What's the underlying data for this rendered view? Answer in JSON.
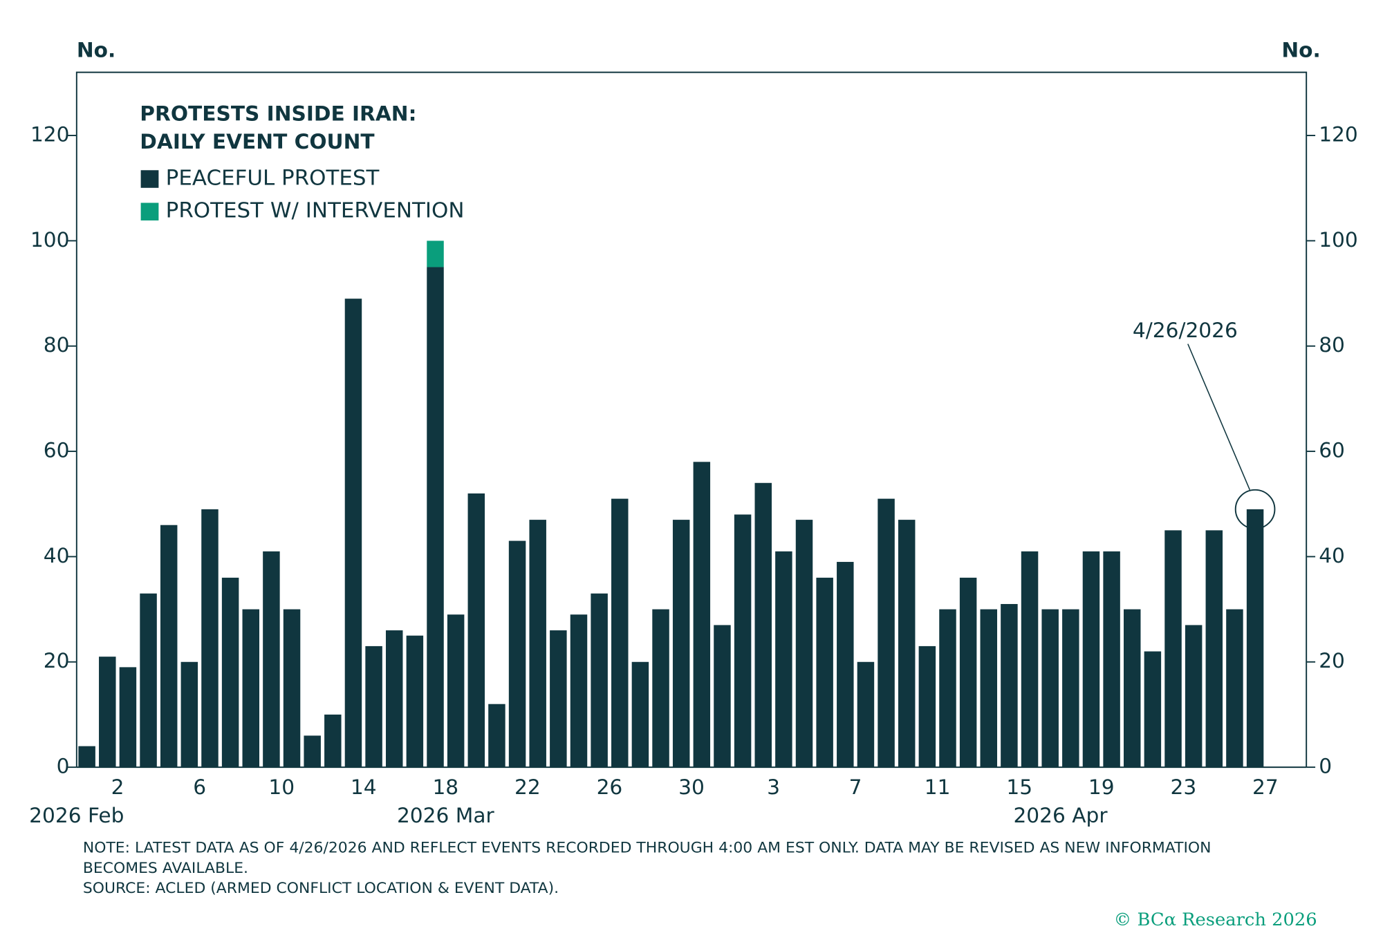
{
  "chart_data": {
    "type": "bar",
    "title": [
      "PROTESTS INSIDE IRAN:",
      "DAILY EVENT COUNT"
    ],
    "ylabel": "No.",
    "y2label": "No.",
    "categories": [
      null,
      null,
      "2",
      null,
      null,
      null,
      "6",
      null,
      null,
      null,
      "10",
      null,
      null,
      null,
      "14",
      null,
      null,
      null,
      "18",
      null,
      null,
      null,
      "22",
      null,
      null,
      null,
      "26",
      null,
      null,
      null,
      "30",
      null,
      null,
      null,
      "3",
      null,
      null,
      null,
      "7",
      null,
      null,
      null,
      "11",
      null,
      null,
      null,
      "15",
      null,
      null,
      null,
      "19",
      null,
      null,
      null,
      "23",
      null,
      null,
      null,
      "27",
      null
    ],
    "groups": [
      {
        "label": "2026 Feb",
        "category": 0
      },
      {
        "label": "2026 Mar",
        "category": 18
      },
      {
        "label": "2026 Apr",
        "category": 48
      }
    ],
    "stacked": true,
    "series": [
      {
        "name": "PEACEFUL PROTEST",
        "color": "#10363f",
        "values": [
          4,
          21,
          19,
          33,
          46,
          20,
          49,
          36,
          30,
          41,
          30,
          6,
          10,
          89,
          23,
          26,
          25,
          95,
          29,
          52,
          12,
          43,
          47,
          26,
          29,
          33,
          51,
          20,
          30,
          47,
          58,
          27,
          48,
          54,
          41,
          47,
          36,
          39,
          20,
          51,
          47,
          23,
          30,
          36,
          30,
          31,
          41,
          30,
          30,
          41,
          41,
          30,
          22,
          45,
          27,
          45,
          30,
          49,
          null,
          null
        ]
      },
      {
        "name": "PROTEST W/ INTERVENTION",
        "color": "#0a9e7c",
        "values": [
          0,
          0,
          0,
          0,
          0,
          0,
          0,
          0,
          0,
          0,
          0,
          0,
          0,
          0,
          0,
          0,
          0,
          5,
          0,
          0,
          0,
          0,
          0,
          0,
          0,
          0,
          0,
          0,
          0,
          0,
          0,
          0,
          0,
          0,
          0,
          0,
          0,
          0,
          0,
          0,
          0,
          0,
          0,
          0,
          0,
          0,
          0,
          0,
          0,
          0,
          0,
          0,
          0,
          0,
          0,
          0,
          0,
          0,
          null,
          null
        ]
      }
    ],
    "ylim": [
      0,
      132
    ],
    "yticks": [
      0,
      20,
      40,
      60,
      80,
      100,
      120
    ],
    "y2lim": [
      0,
      132
    ],
    "y2ticks": [
      0,
      20,
      40,
      60,
      80,
      100,
      120
    ],
    "annotation": "4/26/2026",
    "notes": [
      "NOTE: LATEST DATA AS OF 4/26/2026 AND REFLECT EVENTS RECORDED THROUGH 4:00 AM EST ONLY. DATA MAY BE REVISED AS NEW INFORMATION",
      "BECOMES AVAILABLE.",
      "SOURCE: ACLED (ARMED CONFLICT LOCATION & EVENT DATA)."
    ],
    "credit": "© BCα Research 2026"
  }
}
